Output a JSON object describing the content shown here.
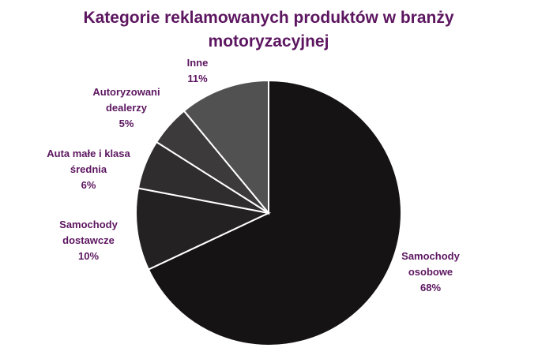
{
  "chart_data": {
    "type": "pie",
    "title": "Kategorie reklamowanych produktów w branży motoryzacyjnej",
    "categories": [
      "Samochody osobowe",
      "Samochody dostawcze",
      "Auta małe i klasa średnia",
      "Autoryzowani dealerzy",
      "Inne"
    ],
    "values": [
      68,
      10,
      6,
      5,
      11
    ],
    "value_labels": [
      "68%",
      "10%",
      "6%",
      "5%",
      "11%"
    ],
    "colors": [
      "#161314",
      "#232122",
      "#2f2d2e",
      "#3c3a3b",
      "#525152"
    ]
  }
}
